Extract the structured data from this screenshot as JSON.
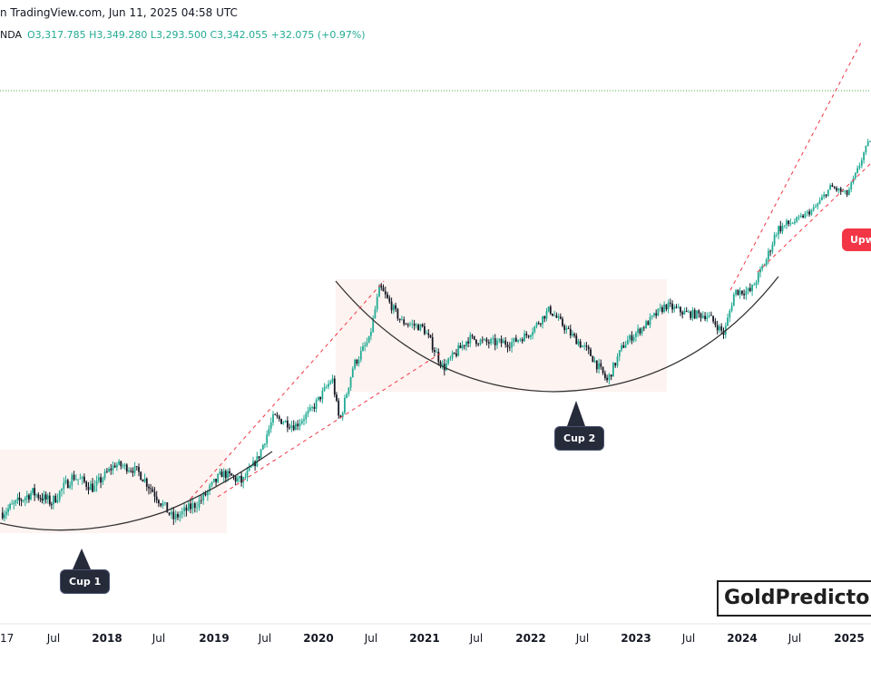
{
  "header": {
    "attribution": "n TradingView.com, Jun 11, 2025 04:58 UTC",
    "symbol_fragment": "NDA",
    "ohlc": "O3,317.785  H3,349.280  L3,293.500  C3,342.055  +32.075 (+0.97%)"
  },
  "annotations": {
    "cup1": "Cup 1",
    "cup2": "Cup 2",
    "upward_fragment": "Upw"
  },
  "brand": "GoldPredictor",
  "colors": {
    "up": "#22ab94",
    "down": "#131722",
    "trendline": "#f23645",
    "cup_curve": "#333333",
    "highlight": "#fdf3f1",
    "level_line": "#4caf50"
  },
  "chart_data": {
    "type": "candlestick",
    "title": "",
    "timeframe_note": "weekly candles",
    "x_tick_labels": [
      "17",
      "Jul",
      "2018",
      "Jul",
      "2019",
      "Jul",
      "2020",
      "Jul",
      "2021",
      "Jul",
      "2022",
      "Jul",
      "2023",
      "Jul",
      "2024",
      "Jul",
      "2025"
    ],
    "x_range": [
      2017.0,
      2025.45
    ],
    "y_range_approx": [
      1150,
      3500
    ],
    "last_candle": {
      "open": 3317.785,
      "high": 3349.28,
      "low": 3293.5,
      "close": 3342.055
    },
    "price_path_keypoints": [
      [
        2017.0,
        1210
      ],
      [
        2017.3,
        1260
      ],
      [
        2017.5,
        1235
      ],
      [
        2017.7,
        1300
      ],
      [
        2017.9,
        1270
      ],
      [
        2018.1,
        1340
      ],
      [
        2018.3,
        1320
      ],
      [
        2018.5,
        1250
      ],
      [
        2018.65,
        1195
      ],
      [
        2018.9,
        1240
      ],
      [
        2019.1,
        1310
      ],
      [
        2019.3,
        1285
      ],
      [
        2019.45,
        1360
      ],
      [
        2019.6,
        1500
      ],
      [
        2019.8,
        1470
      ],
      [
        2019.95,
        1525
      ],
      [
        2020.15,
        1650
      ],
      [
        2020.22,
        1480
      ],
      [
        2020.35,
        1700
      ],
      [
        2020.5,
        1800
      ],
      [
        2020.6,
        2060
      ],
      [
        2020.8,
        1890
      ],
      [
        2021.0,
        1860
      ],
      [
        2021.2,
        1690
      ],
      [
        2021.45,
        1810
      ],
      [
        2021.6,
        1790
      ],
      [
        2021.85,
        1790
      ],
      [
        2022.0,
        1830
      ],
      [
        2022.2,
        1950
      ],
      [
        2022.4,
        1830
      ],
      [
        2022.6,
        1740
      ],
      [
        2022.75,
        1640
      ],
      [
        2022.9,
        1780
      ],
      [
        2023.1,
        1870
      ],
      [
        2023.3,
        1970
      ],
      [
        2023.5,
        1930
      ],
      [
        2023.7,
        1920
      ],
      [
        2023.85,
        1830
      ],
      [
        2023.95,
        2040
      ],
      [
        2024.1,
        2040
      ],
      [
        2024.25,
        2200
      ],
      [
        2024.35,
        2350
      ],
      [
        2024.55,
        2400
      ],
      [
        2024.7,
        2500
      ],
      [
        2024.85,
        2700
      ],
      [
        2025.0,
        2630
      ],
      [
        2025.1,
        2860
      ],
      [
        2025.25,
        3300
      ],
      [
        2025.45,
        3342
      ]
    ],
    "patterns": [
      {
        "name": "Cup 1",
        "start": 2017.0,
        "bottom": 2017.55,
        "end": 2019.55
      },
      {
        "name": "Cup 2",
        "start": 2020.15,
        "bottom": 2022.35,
        "end": 2024.45
      }
    ],
    "resistance_zones": [
      {
        "from": 2016.9,
        "to": 2019.2,
        "level_approx": 1365
      },
      {
        "from": 2020.15,
        "to": 2024.0,
        "level_approx": 2075
      }
    ],
    "trend_channels": "red dashed upward channels 2018.6–2020.6 and 2023.9–2025.45"
  }
}
